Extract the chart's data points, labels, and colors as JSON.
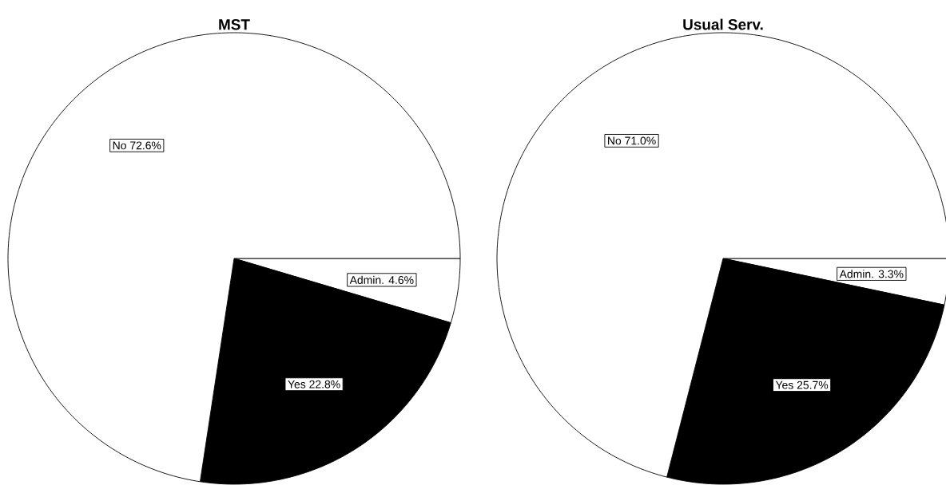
{
  "chart_data": [
    {
      "type": "pie",
      "title": "MST",
      "categories": [
        "Admin.",
        "Yes",
        "No"
      ],
      "values": [
        4.6,
        22.8,
        72.6
      ],
      "colors": [
        "#ffffff",
        "#000000",
        "#ffffff"
      ],
      "value_labels": [
        "4.6%",
        "22.8%",
        "72.6%"
      ]
    },
    {
      "type": "pie",
      "title": "Usual Serv.",
      "categories": [
        "Admin.",
        "Yes",
        "No"
      ],
      "values": [
        3.3,
        25.7,
        71.0
      ],
      "colors": [
        "#ffffff",
        "#000000",
        "#ffffff"
      ],
      "value_labels": [
        "3.3%",
        "25.7%",
        "71.0%"
      ]
    }
  ]
}
